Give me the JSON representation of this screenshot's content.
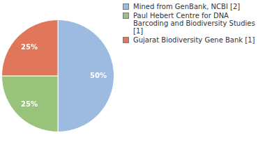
{
  "chart_data": {
    "type": "pie",
    "categories": [
      "Mined from GenBank, NCBI [2]",
      "Paul Hebert Centre for DNA Barcoding and Biodiversity Studies [1]",
      "Gujarat Biodiversity Gene Bank [1]"
    ],
    "values": [
      50,
      25,
      25
    ],
    "value_labels": [
      "50%",
      "25%",
      "25%"
    ],
    "colors": [
      "#9dbbe0",
      "#99c37a",
      "#e0775b"
    ],
    "data_labels": true,
    "legend": "top-right"
  }
}
